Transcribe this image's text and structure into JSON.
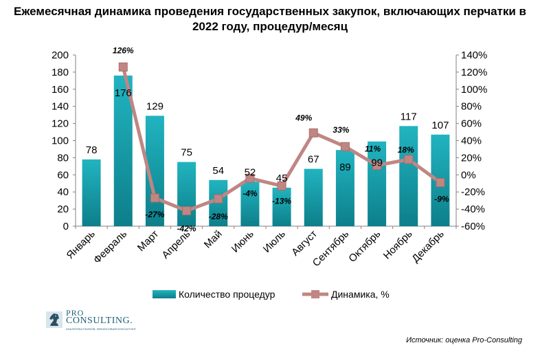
{
  "chart_data": {
    "type": "bar",
    "title": "Ежемесячная динамика проведения государственных закупок, включающих перчатки в 2022 году, процедур/месяц",
    "categories": [
      "Январь",
      "Февраль",
      "Март",
      "Апрель",
      "Май",
      "Июнь",
      "Июль",
      "Август",
      "Сентябрь",
      "Октябрь",
      "Ноябрь",
      "Декабрь"
    ],
    "series": [
      {
        "name": "Количество процедур",
        "type": "bar",
        "axis": "left",
        "values": [
          78,
          176,
          129,
          75,
          54,
          52,
          45,
          67,
          89,
          99,
          117,
          107
        ],
        "labels": [
          "78",
          "176",
          "129",
          "75",
          "54",
          "52",
          "45",
          "67",
          "89",
          "99",
          "117",
          "107"
        ],
        "color": "#1aa3b0"
      },
      {
        "name": "Динамика, %",
        "type": "line",
        "axis": "right",
        "values": [
          null,
          126,
          -27,
          -42,
          -28,
          -4,
          -13,
          49,
          33,
          11,
          18,
          -9
        ],
        "labels": [
          "",
          "126%",
          "-27%",
          "-42%",
          "-28%",
          "-4%",
          "-13%",
          "49%",
          "33%",
          "11%",
          "18%",
          "-9%"
        ],
        "color": "#c08683"
      }
    ],
    "y_left": {
      "min": 0,
      "max": 200,
      "step": 20,
      "ticks": [
        "0",
        "20",
        "40",
        "60",
        "80",
        "100",
        "120",
        "140",
        "160",
        "180",
        "200"
      ]
    },
    "y_right": {
      "min": -60,
      "max": 140,
      "step": 20,
      "ticks": [
        "-60%",
        "-40%",
        "-20%",
        "0%",
        "20%",
        "40%",
        "60%",
        "80%",
        "100%",
        "120%",
        "140%"
      ]
    },
    "grid": false,
    "legend_position": "bottom"
  },
  "logo": {
    "line1": "PRO",
    "line2": "CONSULTING.",
    "tagline": "АНАЛИТИКА РЫНКОВ. ФИНАНСОВЫЙ КОНСАЛТИНГ"
  },
  "source": "Источник: оценка Pro-Consulting"
}
